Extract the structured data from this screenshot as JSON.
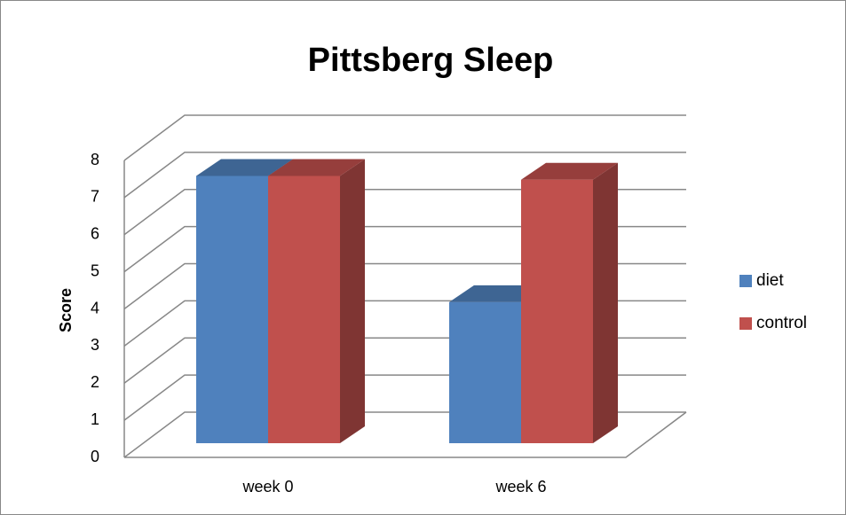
{
  "chart_data": {
    "type": "bar3d",
    "title": "Pittsberg Sleep",
    "y_label": "Score",
    "categories": [
      "week 0",
      "week 6"
    ],
    "series": [
      {
        "name": "diet",
        "color": "#4f81bd",
        "values": [
          7.2,
          3.8
        ]
      },
      {
        "name": "control",
        "color": "#c0504d",
        "values": [
          7.2,
          7.1
        ]
      }
    ],
    "ylim": [
      0,
      8
    ],
    "yticks": [
      0,
      1,
      2,
      3,
      4,
      5,
      6,
      7,
      8
    ],
    "grid": true,
    "legend": "right"
  }
}
